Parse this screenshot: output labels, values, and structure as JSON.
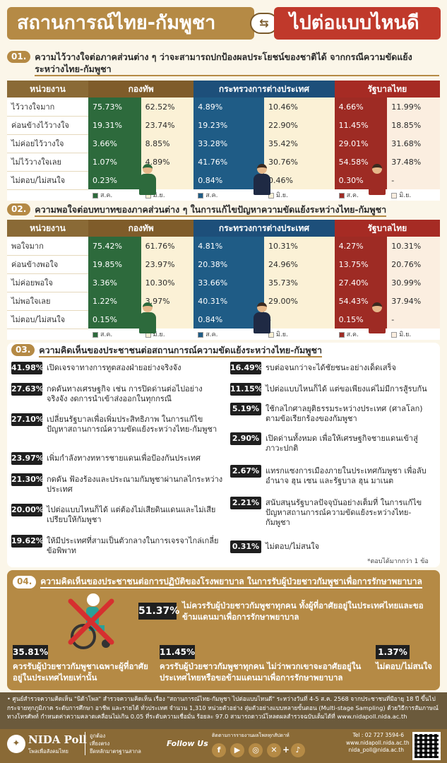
{
  "header": {
    "title_left": "สถานการณ์ไทย-กัมพูชา",
    "swap_symbol": "⇆",
    "title_right": "ไปต่อแบบไหนดี"
  },
  "colors": {
    "gold": "#b58a45",
    "army_green": "#2d6a3c",
    "mfa_blue": "#1f5c86",
    "gov_red": "#9e2b24"
  },
  "s1": {
    "num": "01.",
    "title": "ความไว้วางใจต่อภาคส่วนต่าง ๆ ว่าจะสามารถปกป้องผลประโยชน์ของชาติได้ จากกรณีความขัดแย้งระหว่างไทย-กัมพูชา",
    "headers": [
      "หน่วยงาน",
      "กองทัพ",
      "กระทรวงการต่างประเทศ",
      "รัฐบาลไทย"
    ],
    "rows": [
      {
        "label": "ไว้วางใจมาก",
        "a1": "75.73%",
        "a2": "62.52%",
        "m1": "4.89%",
        "m2": "10.46%",
        "g1": "4.66%",
        "g2": "11.99%"
      },
      {
        "label": "ค่อนข้างไว้วางใจ",
        "a1": "19.31%",
        "a2": "23.74%",
        "m1": "19.23%",
        "m2": "22.90%",
        "g1": "11.45%",
        "g2": "18.85%"
      },
      {
        "label": "ไม่ค่อยไว้วางใจ",
        "a1": "3.66%",
        "a2": "8.85%",
        "m1": "33.28%",
        "m2": "35.42%",
        "g1": "29.01%",
        "g2": "31.68%"
      },
      {
        "label": "ไม่ไว้วางใจเลย",
        "a1": "1.07%",
        "a2": "4.89%",
        "m1": "41.76%",
        "m2": "30.76%",
        "g1": "54.58%",
        "g2": "37.48%"
      },
      {
        "label": "ไม่ตอบ/ไม่สนใจ",
        "a1": "0.23%",
        "a2": "-",
        "m1": "0.84%",
        "m2": "0.46%",
        "g1": "0.30%",
        "g2": "-"
      }
    ],
    "legend_a": "ส.ค.",
    "legend_b": "มิ.ย."
  },
  "s2": {
    "num": "02.",
    "title": "ความพอใจต่อบทบาทของภาคส่วนต่าง ๆ ในการแก้ไขปัญหาความขัดแย้งระหว่างไทย-กัมพูชา",
    "headers": [
      "หน่วยงาน",
      "กองทัพ",
      "กระทรวงการต่างประเทศ",
      "รัฐบาลไทย"
    ],
    "rows": [
      {
        "label": "พอใจมาก",
        "a1": "75.42%",
        "a2": "61.76%",
        "m1": "4.81%",
        "m2": "10.31%",
        "g1": "4.27%",
        "g2": "10.31%"
      },
      {
        "label": "ค่อนข้างพอใจ",
        "a1": "19.85%",
        "a2": "23.97%",
        "m1": "20.38%",
        "m2": "24.96%",
        "g1": "13.75%",
        "g2": "20.76%"
      },
      {
        "label": "ไม่ค่อยพอใจ",
        "a1": "3.36%",
        "a2": "10.30%",
        "m1": "33.66%",
        "m2": "35.73%",
        "g1": "27.40%",
        "g2": "30.99%"
      },
      {
        "label": "ไม่พอใจเลย",
        "a1": "1.22%",
        "a2": "3.97%",
        "m1": "40.31%",
        "m2": "29.00%",
        "g1": "54.43%",
        "g2": "37.94%"
      },
      {
        "label": "ไม่ตอบ/ไม่สนใจ",
        "a1": "0.15%",
        "a2": "-",
        "m1": "0.84%",
        "m2": "-",
        "g1": "0.15%",
        "g2": "-"
      }
    ],
    "legend_a": "ส.ค.",
    "legend_b": "มิ.ย."
  },
  "s3": {
    "num": "03.",
    "title": "ความคิดเห็นของประชาชนต่อสถานการณ์ความขัดแย้งระหว่างไทย-กัมพูชา",
    "left": [
      {
        "pct": "41.98%",
        "text": "เปิดเจรจาทางการทูตสองฝ่ายอย่างจริงจัง"
      },
      {
        "pct": "27.63%",
        "text": "กดดันทางเศรษฐกิจ เช่น การปิดด่านต่อไปอย่างจริงจัง งดการนำเข้าส่งออกในทุกกรณี"
      },
      {
        "pct": "27.10%",
        "text": "เปลี่ยนรัฐบาลเพื่อเพิ่มประสิทธิภาพ ในการแก้ไขปัญหาสถานการณ์ความขัดแย้งระหว่างไทย-กัมพูชา"
      },
      {
        "pct": "23.97%",
        "text": "เพิ่มกำลังทางทหารชายแดนเพื่อป้องกันประเทศ"
      },
      {
        "pct": "21.30%",
        "text": "กดดัน ฟ้องร้องและประณามกัมพูชาผ่านกลไกระหว่างประเทศ"
      },
      {
        "pct": "20.00%",
        "text": "ไปต่อแบบไหนก็ได้ แต่ต้องไม่เสียดินแดนและไม่เสียเปรียบให้กัมพูชา"
      },
      {
        "pct": "19.62%",
        "text": "ให้มีประเทศที่สามเป็นตัวกลางในการเจรจาไกล่เกลี่ยข้อพิพาท"
      }
    ],
    "right": [
      {
        "pct": "16.49%",
        "text": "รบต่อจนกว่าจะได้ชัยชนะอย่างเด็ดเสร็จ"
      },
      {
        "pct": "11.15%",
        "text": "ไปต่อแบบไหนก็ได้ แต่ขอเพียงแค่ไม่มีการสู้รบกัน"
      },
      {
        "pct": "5.19%",
        "text": "ใช้กลไกศาลยุติธรรมระหว่างประเทศ (ศาลโลก) ตามข้อเรียกร้องของกัมพูชา"
      },
      {
        "pct": "2.90%",
        "text": "เปิดด่านทั้งหมด เพื่อให้เศรษฐกิจชายแดนเข้าสู่ภาวะปกติ"
      },
      {
        "pct": "2.67%",
        "text": "แทรกแซงการเมืองภายในประเทศกัมพูชา เพื่อลับอำนาจ ฮุน เซน และรัฐบาล ฮุน มาเนต"
      },
      {
        "pct": "2.21%",
        "text": "สนับสนุนรัฐบาลปัจจุบันอย่างเต็มที่ ในการแก้ไขปัญหาสถานการณ์ความขัดแย้งระหว่างไทย-กัมพูชา"
      },
      {
        "pct": "0.31%",
        "text": "ไม่ตอบ/ไม่สนใจ"
      }
    ],
    "note": "*ตอบได้มากกว่า 1 ข้อ"
  },
  "s4": {
    "num": "04.",
    "title": "ความคิดเห็นของประชาชนต่อการปฏิบัติของโรงพยาบาล ในการรับผู้ป่วยชาวกัมพูชาเพื่อการรักษาพยาบาล",
    "main_pct": "51.37%",
    "main_text": "ไม่ควรรับผู้ป่วยชาวกัมพูชาทุกคน ทั้งผู้ที่อาศัยอยู่ในประเทศไทยและขอข้ามแดนมาเพื่อการรักษาพยาบาล",
    "items": [
      {
        "pct": "35.81%",
        "text": "ควรรับผู้ป่วยชาวกัมพูชาเฉพาะผู้ที่อาศัยอยู่ในประเทศไทยเท่านั้น"
      },
      {
        "pct": "11.45%",
        "text": "ควรรับผู้ป่วยชาวกัมพูชาทุกคน ไม่ว่าพวกเขาจะอาศัยอยู่ในประเทศไทยหรือขอข้ามแดนมาเพื่อการรักษาพยาบาล"
      },
      {
        "pct": "1.37%",
        "text": "ไม่ตอบ/ไม่สนใจ"
      }
    ]
  },
  "footnote": "• ศูนย์สำรวจความคิดเห็น \"นิด้าโพล\" สำรวจความคิดเห็น เรื่อง \"สถานการณ์ไทย-กัมพูชา ไปต่อแบบไหนดี\" ระหว่างวันที่ 4-5 ส.ค. 2568 จากประชาชนที่มีอายุ 18 ปี ขึ้นไป กระจายทุกภูมิภาค ระดับการศึกษา อาชีพ และรายได้ ทั่วประเทศ จำนวน 1,310 หน่วยตัวอย่าง สุ่มตัวอย่างแบบหลายขั้นตอน (Multi-stage Sampling) ด้วยวิธีการสัมภาษณ์ทางโทรศัพท์ กำหนดค่าความคลาดเคลื่อนไม่เกิน 0.05 ที่ระดับความเชื่อมั่น ร้อยละ 97.0 สามารถดาวน์โหลดผลสำรวจฉบับเต็มได้ที่ www.nidapoll.nida.ac.th",
  "footer": {
    "logo": "NIDA Poll",
    "logo_sub": "โพลเพื่อสังคมไทย",
    "tags": [
      "ถูกต้อง",
      "เที่ยงตรง",
      "ยึดหลักมาตรฐานสากล"
    ],
    "follow": "Follow Us",
    "follow_sub": "ติดตามการรายงานผลโพลทุกสัปดาห์",
    "tel": "Tel : 02 727 3594-6",
    "web": "www.nidapoll.nida.ac.th",
    "email": "nida_poll@nida.ac.th",
    "social_icons": [
      "facebook-icon",
      "youtube-icon",
      "instagram-icon",
      "x-icon",
      "tiktok-icon"
    ]
  }
}
